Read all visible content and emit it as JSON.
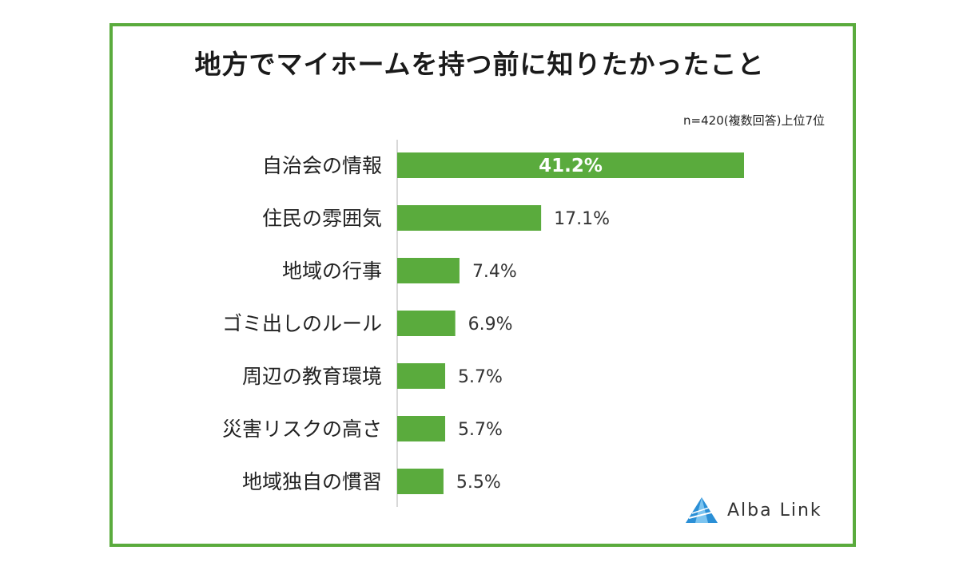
{
  "title": "地方でマイホームを持つ前に知りたかったこと",
  "subtitle": "n=420(複数回答)上位7位",
  "logo": {
    "text": "Alba Link",
    "icon": "alba-link-logo-icon"
  },
  "colors": {
    "bar": "#5aab3d",
    "frame": "#5aab3d",
    "axis": "#cccccc",
    "logo": "#2a8fd6"
  },
  "chart_data": {
    "type": "bar",
    "orientation": "horizontal",
    "title": "地方でマイホームを持つ前に知りたかったこと",
    "subtitle": "n=420(複数回答)上位7位",
    "categories": [
      "自治会の情報",
      "住民の雰囲気",
      "地域の行事",
      "ゴミ出しのルール",
      "周辺の教育環境",
      "災害リスクの高さ",
      "地域独自の慣習"
    ],
    "values": [
      41.2,
      17.1,
      7.4,
      6.9,
      5.7,
      5.7,
      5.5
    ],
    "value_labels": [
      "41.2%",
      "17.1%",
      "7.4%",
      "6.9%",
      "5.7%",
      "5.7%",
      "5.5%"
    ],
    "unit": "%",
    "xlim": [
      0,
      41.2
    ],
    "grid": false,
    "legend": "none"
  }
}
